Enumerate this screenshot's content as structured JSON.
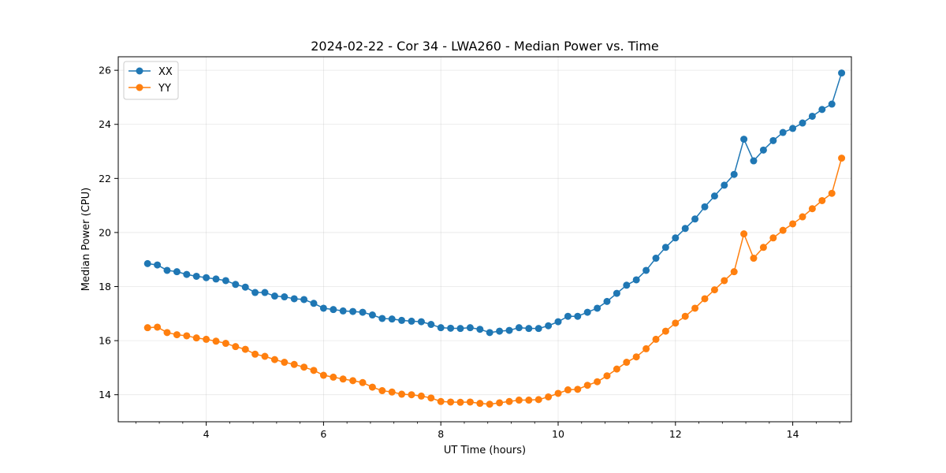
{
  "chart_data": {
    "type": "line",
    "title": "2024-02-22 - Cor 34 - LWA260 - Median Power vs. Time",
    "xlabel": "UT Time (hours)",
    "ylabel": "Median Power (CPU)",
    "xlim": [
      2.5,
      15.0
    ],
    "ylim": [
      13.0,
      26.5
    ],
    "xticks": [
      4,
      6,
      8,
      10,
      12,
      14
    ],
    "xtick_labels": [
      "4",
      "6",
      "8",
      "10",
      "12",
      "14"
    ],
    "yticks": [
      14,
      16,
      18,
      20,
      22,
      24,
      26
    ],
    "ytick_labels": [
      "14",
      "16",
      "18",
      "20",
      "22",
      "24",
      "26"
    ],
    "grid": true,
    "legend_position": "top-left",
    "x": [
      3.0,
      3.167,
      3.333,
      3.5,
      3.667,
      3.833,
      4.0,
      4.167,
      4.333,
      4.5,
      4.667,
      4.833,
      5.0,
      5.167,
      5.333,
      5.5,
      5.667,
      5.833,
      6.0,
      6.167,
      6.333,
      6.5,
      6.667,
      6.833,
      7.0,
      7.167,
      7.333,
      7.5,
      7.667,
      7.833,
      8.0,
      8.167,
      8.333,
      8.5,
      8.667,
      8.833,
      9.0,
      9.167,
      9.333,
      9.5,
      9.667,
      9.833,
      10.0,
      10.167,
      10.333,
      10.5,
      10.667,
      10.833,
      11.0,
      11.167,
      11.333,
      11.5,
      11.667,
      11.833,
      12.0,
      12.167,
      12.333,
      12.5,
      12.667,
      12.833,
      13.0,
      13.167,
      13.333,
      13.5,
      13.667,
      13.833,
      14.0,
      14.167,
      14.333,
      14.5,
      14.667,
      14.833
    ],
    "series": [
      {
        "name": "XX",
        "color": "#1f77b4",
        "values": [
          18.85,
          18.8,
          18.6,
          18.55,
          18.45,
          18.38,
          18.33,
          18.28,
          18.22,
          18.08,
          17.98,
          17.78,
          17.78,
          17.65,
          17.62,
          17.55,
          17.52,
          17.38,
          17.2,
          17.15,
          17.1,
          17.08,
          17.05,
          16.95,
          16.82,
          16.8,
          16.75,
          16.72,
          16.7,
          16.6,
          16.48,
          16.46,
          16.45,
          16.48,
          16.42,
          16.3,
          16.35,
          16.38,
          16.48,
          16.45,
          16.45,
          16.55,
          16.7,
          16.9,
          16.9,
          17.05,
          17.2,
          17.45,
          17.75,
          18.05,
          18.25,
          18.6,
          19.05,
          19.45,
          19.8,
          20.15,
          20.5,
          20.95,
          21.35,
          21.75,
          22.15,
          23.45,
          22.65,
          23.05,
          23.4,
          23.7,
          23.85,
          24.05,
          24.3,
          24.55,
          24.75,
          25.9
        ]
      },
      {
        "name": "YY",
        "color": "#ff7f0e",
        "values": [
          16.48,
          16.5,
          16.3,
          16.22,
          16.18,
          16.1,
          16.05,
          15.98,
          15.9,
          15.78,
          15.68,
          15.5,
          15.42,
          15.3,
          15.2,
          15.12,
          15.02,
          14.9,
          14.72,
          14.65,
          14.58,
          14.52,
          14.45,
          14.28,
          14.15,
          14.1,
          14.02,
          14.0,
          13.95,
          13.88,
          13.75,
          13.73,
          13.72,
          13.73,
          13.68,
          13.65,
          13.7,
          13.75,
          13.8,
          13.8,
          13.82,
          13.92,
          14.05,
          14.18,
          14.2,
          14.35,
          14.48,
          14.7,
          14.95,
          15.2,
          15.4,
          15.7,
          16.05,
          16.35,
          16.65,
          16.9,
          17.2,
          17.55,
          17.88,
          18.22,
          18.55,
          19.95,
          19.05,
          19.45,
          19.8,
          20.08,
          20.32,
          20.58,
          20.88,
          21.18,
          21.45,
          22.75
        ]
      }
    ]
  }
}
